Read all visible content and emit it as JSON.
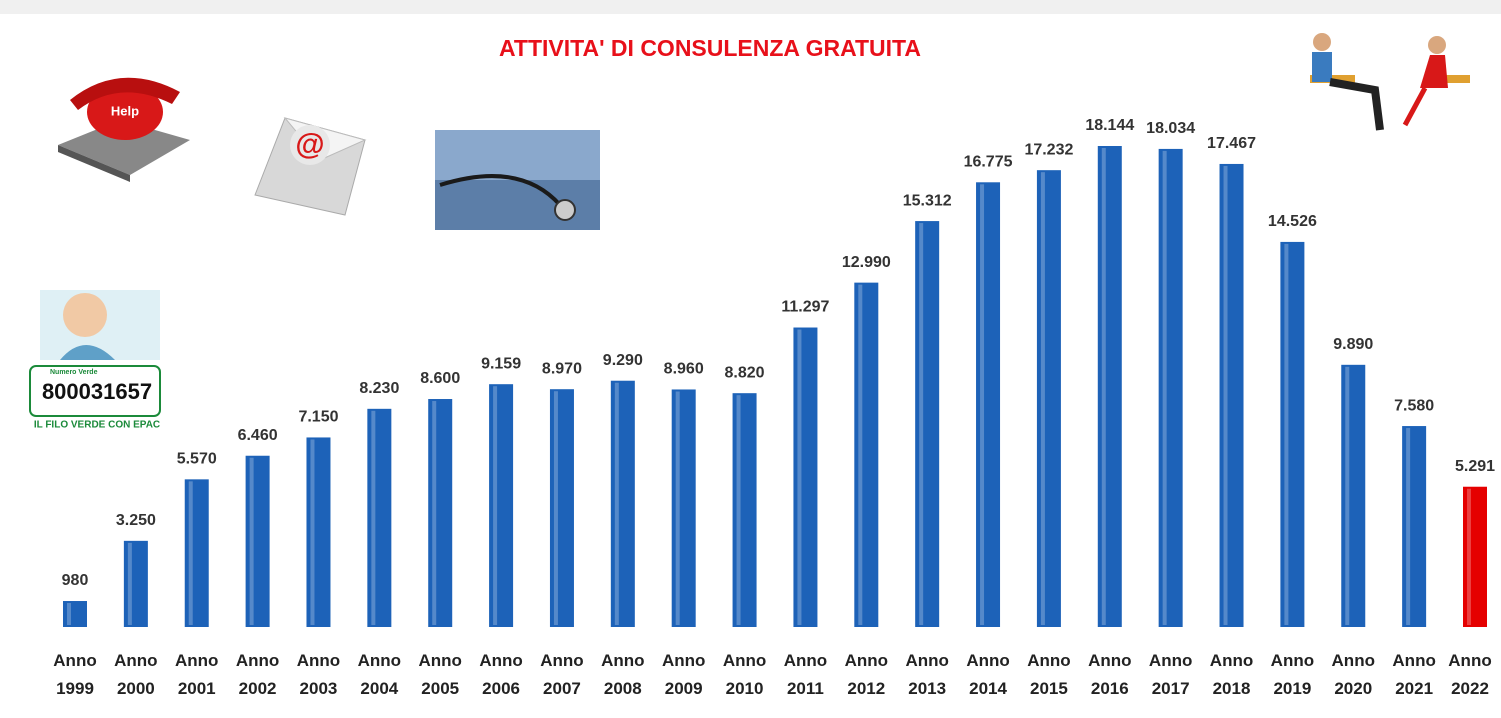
{
  "chart_data": {
    "type": "bar",
    "title": "ATTIVITA' DI CONSULENZA GRATUITA",
    "categories": [
      "Anno 1999",
      "Anno 2000",
      "Anno 2001",
      "Anno 2002",
      "Anno 2003",
      "Anno 2004",
      "Anno 2005",
      "Anno 2006",
      "Anno 2007",
      "Anno 2008",
      "Anno 2009",
      "Anno 2010",
      "Anno 2011",
      "Anno 2012",
      "Anno 2013",
      "Anno 2014",
      "Anno 2015",
      "Anno 2016",
      "Anno 2017",
      "Anno 2018",
      "Anno 2019",
      "Anno 2020",
      "Anno 2021",
      "Anno 2022"
    ],
    "values": [
      980,
      3250,
      5570,
      6460,
      7150,
      8230,
      8600,
      9159,
      8970,
      9290,
      8960,
      8820,
      11297,
      12990,
      15312,
      16775,
      17232,
      18144,
      18034,
      17467,
      14526,
      9890,
      7580,
      5291
    ],
    "value_labels": [
      "980",
      "3.250",
      "5.570",
      "6.460",
      "7.150",
      "8.230",
      "8.600",
      "9.159",
      "8.970",
      "9.290",
      "8.960",
      "8.820",
      "11.297",
      "12.990",
      "15.312",
      "16.775",
      "17.232",
      "18.144",
      "18.034",
      "17.467",
      "14.526",
      "9.890",
      "7.580",
      "5.291"
    ],
    "colors": [
      "#1d62b8",
      "#1d62b8",
      "#1d62b8",
      "#1d62b8",
      "#1d62b8",
      "#1d62b8",
      "#1d62b8",
      "#1d62b8",
      "#1d62b8",
      "#1d62b8",
      "#1d62b8",
      "#1d62b8",
      "#1d62b8",
      "#1d62b8",
      "#1d62b8",
      "#1d62b8",
      "#1d62b8",
      "#1d62b8",
      "#1d62b8",
      "#1d62b8",
      "#1d62b8",
      "#1d62b8",
      "#1d62b8",
      "#e50000"
    ]
  },
  "icons": {
    "phone_label": "Help",
    "email_symbol": "@"
  },
  "badge": {
    "label": "Numero Verde",
    "number": "800031657",
    "caption": "IL FILO VERDE CON EPAC"
  }
}
